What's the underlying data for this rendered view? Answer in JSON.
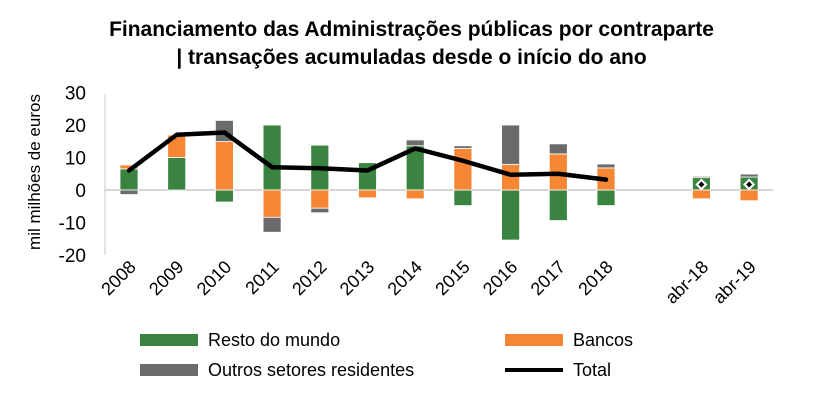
{
  "chart_data": {
    "type": "bar",
    "stacked": true,
    "title_lines": [
      "Financiamento das Administrações públicas por contraparte",
      "|  transações acumuladas desde o início do ano"
    ],
    "xlabel": "",
    "ylabel": "mil milhões de euros",
    "ylim": [
      -20,
      30
    ],
    "yticks": [
      30,
      20,
      10,
      0,
      -10,
      -20
    ],
    "grid": false,
    "legend_position": "bottom",
    "categories": [
      "2008",
      "2009",
      "2010",
      "2011",
      "2012",
      "2013",
      "2014",
      "2015",
      "2016",
      "2017",
      "2018",
      "",
      "abr-18",
      "abr-19"
    ],
    "series": [
      {
        "name": "Resto do mundo",
        "type": "bar",
        "color": "#3a8340",
        "values": [
          6.5,
          10,
          -3.7,
          20,
          13.8,
          8.4,
          13.6,
          -4.8,
          -15.4,
          -9.4,
          -4.8,
          null,
          3.8,
          4.0
        ]
      },
      {
        "name": "Bancos",
        "type": "bar",
        "color": "#f58634",
        "values": [
          1.2,
          6.9,
          14.9,
          -8.4,
          -5.6,
          -2.4,
          -2.7,
          12.8,
          7.9,
          11.1,
          6.8,
          null,
          -2.7,
          -3.3
        ]
      },
      {
        "name": "Outros setores residentes",
        "type": "bar",
        "color": "#6b6b6b",
        "values": [
          -1.4,
          0,
          6.5,
          -4.6,
          -1.4,
          0,
          1.8,
          0.8,
          12.1,
          3.1,
          1.2,
          null,
          0.4,
          0.9
        ]
      },
      {
        "name": "Total",
        "type": "line",
        "color": "#000000",
        "values": [
          6,
          17,
          17.7,
          7,
          6.7,
          6,
          12.8,
          9,
          4.7,
          5,
          3.2,
          null,
          1.7,
          1.7
        ]
      }
    ]
  }
}
